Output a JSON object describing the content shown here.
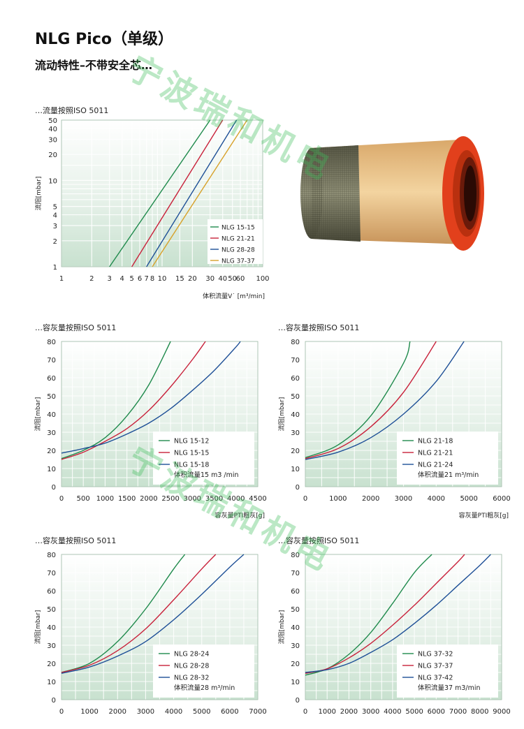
{
  "title": "NLG Pico（单级）",
  "subtitle": "流动特性–不带安全芯…",
  "watermark_text": "宁波瑞和机电",
  "colors": {
    "green": "#1f8a4c",
    "red": "#c8213a",
    "blue": "#1d4f96",
    "orange": "#d7a12a"
  },
  "charts": [
    {
      "id": "flow",
      "section_label": "…流量按照ISO  5011",
      "xlabel": "体积流量V˙ [m³/min]",
      "ylabel": "流阻[mbar]",
      "x_ticks": [
        "1",
        "2",
        "3",
        "4",
        "5",
        "6",
        "7",
        "8",
        "10",
        "15",
        "20",
        "30",
        "40",
        "50",
        "60",
        "100"
      ],
      "y_ticks": [
        "1",
        "2",
        "3",
        "4",
        "5",
        "10",
        "20",
        "30",
        "40",
        "50"
      ],
      "legend": [
        "NLG  15-15",
        "NLG  21-21",
        "NLG  28-28",
        "NLG  37-37"
      ]
    },
    {
      "id": "dust1",
      "section_label": "…容灰量按照ISO  5011",
      "xlabel": "容灰量PTI粗灰[g]",
      "ylabel": "流阻[mbar]",
      "x_ticks": [
        "0",
        "500",
        "1000",
        "1500",
        "2000",
        "2500",
        "3000",
        "3500",
        "4000",
        "4500"
      ],
      "y_ticks": [
        "0",
        "10",
        "20",
        "30",
        "40",
        "50",
        "60",
        "70",
        "80"
      ],
      "legend": [
        "NLG  15-12",
        "NLG  15-15",
        "NLG  15-18"
      ],
      "legend_note": "体积流量15  m3  /min"
    },
    {
      "id": "dust2",
      "section_label": "…容灰量按照ISO  5011",
      "xlabel": "容灰量PTI粗灰[g]",
      "ylabel": "流阻[mbar]",
      "x_ticks": [
        "0",
        "1000",
        "2000",
        "3000",
        "4000",
        "5000",
        "6000"
      ],
      "y_ticks": [
        "0",
        "10",
        "20",
        "30",
        "40",
        "50",
        "60",
        "70",
        "80"
      ],
      "legend": [
        "NLG  21-18",
        "NLG  21-21",
        "NLG  21-24"
      ],
      "legend_note": "体积流量21  m³/min"
    },
    {
      "id": "dust3",
      "section_label": "…容灰量按照ISO  5011",
      "xlabel": "",
      "ylabel": "流阻[mbar]",
      "x_ticks": [
        "0",
        "1000",
        "2000",
        "3000",
        "4000",
        "5000",
        "6000",
        "7000"
      ],
      "y_ticks": [
        "0",
        "10",
        "20",
        "30",
        "40",
        "50",
        "60",
        "70",
        "80"
      ],
      "legend": [
        "NLG  28-24",
        "NLG  28-28",
        "NLG  28-32"
      ],
      "legend_note": "体积流量28  m³/min"
    },
    {
      "id": "dust4",
      "section_label": "…容灰量按照ISO  5011",
      "xlabel": "",
      "ylabel": "流阻[mbar]",
      "x_ticks": [
        "0",
        "1000",
        "2000",
        "3000",
        "4000",
        "5000",
        "6000",
        "7000",
        "8000",
        "9000"
      ],
      "y_ticks": [
        "0",
        "10",
        "20",
        "30",
        "40",
        "50",
        "60",
        "70",
        "80"
      ],
      "legend": [
        "NLG  37-32",
        "NLG  37-37",
        "NLG  37-42"
      ],
      "legend_note": "体积流量37  m3/min"
    }
  ],
  "chart_data": [
    {
      "type": "line",
      "xlabel": "体积流量V˙ [m³/min]",
      "ylabel": "流阻[mbar]",
      "x_scale": "log",
      "y_scale": "log",
      "xlim": [
        1,
        100
      ],
      "ylim": [
        1,
        50
      ],
      "series": [
        {
          "name": "NLG  15-15",
          "x": [
            3,
            30
          ],
          "y": [
            1,
            50
          ]
        },
        {
          "name": "NLG  21-21",
          "x": [
            5,
            40
          ],
          "y": [
            1,
            50
          ]
        },
        {
          "name": "NLG  28-28",
          "x": [
            7,
            55
          ],
          "y": [
            1,
            50
          ]
        },
        {
          "name": "NLG  37-37",
          "x": [
            8,
            70
          ],
          "y": [
            1,
            50
          ]
        }
      ],
      "legend": "bottom-right"
    },
    {
      "type": "line",
      "xlabel": "容灰量PTI粗灰[g]",
      "ylabel": "流阻[mbar]",
      "xlim": [
        0,
        4500
      ],
      "ylim": [
        0,
        80
      ],
      "series": [
        {
          "name": "NLG  15-12",
          "x": [
            0,
            500,
            1000,
            1500,
            2000,
            2500
          ],
          "y": [
            15.5,
            20,
            27,
            39,
            56,
            80
          ]
        },
        {
          "name": "NLG  15-15",
          "x": [
            0,
            500,
            1000,
            1500,
            2000,
            2500,
            3000,
            3300
          ],
          "y": [
            15,
            19,
            25,
            32,
            42,
            55,
            70,
            80
          ]
        },
        {
          "name": "NLG  15-18",
          "x": [
            0,
            500,
            1000,
            1500,
            2000,
            2500,
            3000,
            3500,
            4000,
            4100
          ],
          "y": [
            18.5,
            21,
            24,
            29,
            35,
            43,
            53,
            64,
            77,
            80
          ]
        }
      ],
      "legend": "bottom-right"
    },
    {
      "type": "line",
      "xlabel": "容灰量PTI粗灰[g]",
      "ylabel": "流阻[mbar]",
      "xlim": [
        0,
        6000
      ],
      "ylim": [
        0,
        80
      ],
      "series": [
        {
          "name": "NLG  21-18",
          "x": [
            0,
            1000,
            2000,
            3000,
            3200
          ],
          "y": [
            16,
            23,
            39,
            68,
            80
          ]
        },
        {
          "name": "NLG  21-21",
          "x": [
            0,
            1000,
            2000,
            3000,
            4000
          ],
          "y": [
            15.5,
            21,
            33,
            52,
            80
          ]
        },
        {
          "name": "NLG  21-24",
          "x": [
            0,
            1000,
            2000,
            3000,
            4000,
            4850
          ],
          "y": [
            15,
            19,
            27,
            40,
            58,
            80
          ]
        }
      ],
      "legend": "bottom-right"
    },
    {
      "type": "line",
      "ylabel": "流阻[mbar]",
      "xlim": [
        0,
        7000
      ],
      "ylim": [
        0,
        80
      ],
      "series": [
        {
          "name": "NLG  28-24",
          "x": [
            0,
            1000,
            2000,
            3000,
            4000,
            4400
          ],
          "y": [
            15,
            20,
            32,
            50,
            72,
            80
          ]
        },
        {
          "name": "NLG  28-28",
          "x": [
            0,
            1000,
            2000,
            3000,
            4000,
            5000,
            5500
          ],
          "y": [
            15,
            19,
            27,
            39,
            55,
            72,
            80
          ]
        },
        {
          "name": "NLG  28-32",
          "x": [
            0,
            1000,
            2000,
            3000,
            4000,
            5000,
            6000,
            6500
          ],
          "y": [
            14.5,
            18,
            24,
            32,
            44,
            58,
            73,
            80
          ]
        }
      ],
      "legend": "bottom-right"
    },
    {
      "type": "line",
      "ylabel": "流阻[mbar]",
      "xlim": [
        0,
        9000
      ],
      "ylim": [
        0,
        80
      ],
      "series": [
        {
          "name": "NLG  37-32",
          "x": [
            0,
            1000,
            2000,
            3000,
            4000,
            5000,
            5800
          ],
          "y": [
            13.5,
            17,
            25,
            37,
            53,
            70,
            80
          ]
        },
        {
          "name": "NLG  37-37",
          "x": [
            0,
            1000,
            2000,
            3000,
            4000,
            5000,
            6000,
            7000,
            7300
          ],
          "y": [
            14.5,
            17,
            23,
            31,
            41,
            52,
            64,
            76,
            80
          ]
        },
        {
          "name": "NLG  37-42",
          "x": [
            0,
            1000,
            2000,
            3000,
            4000,
            5000,
            6000,
            7000,
            8000,
            8500
          ],
          "y": [
            15,
            16.5,
            20,
            26,
            33,
            42,
            52,
            63,
            74,
            80
          ]
        }
      ],
      "legend": "bottom-right"
    }
  ]
}
